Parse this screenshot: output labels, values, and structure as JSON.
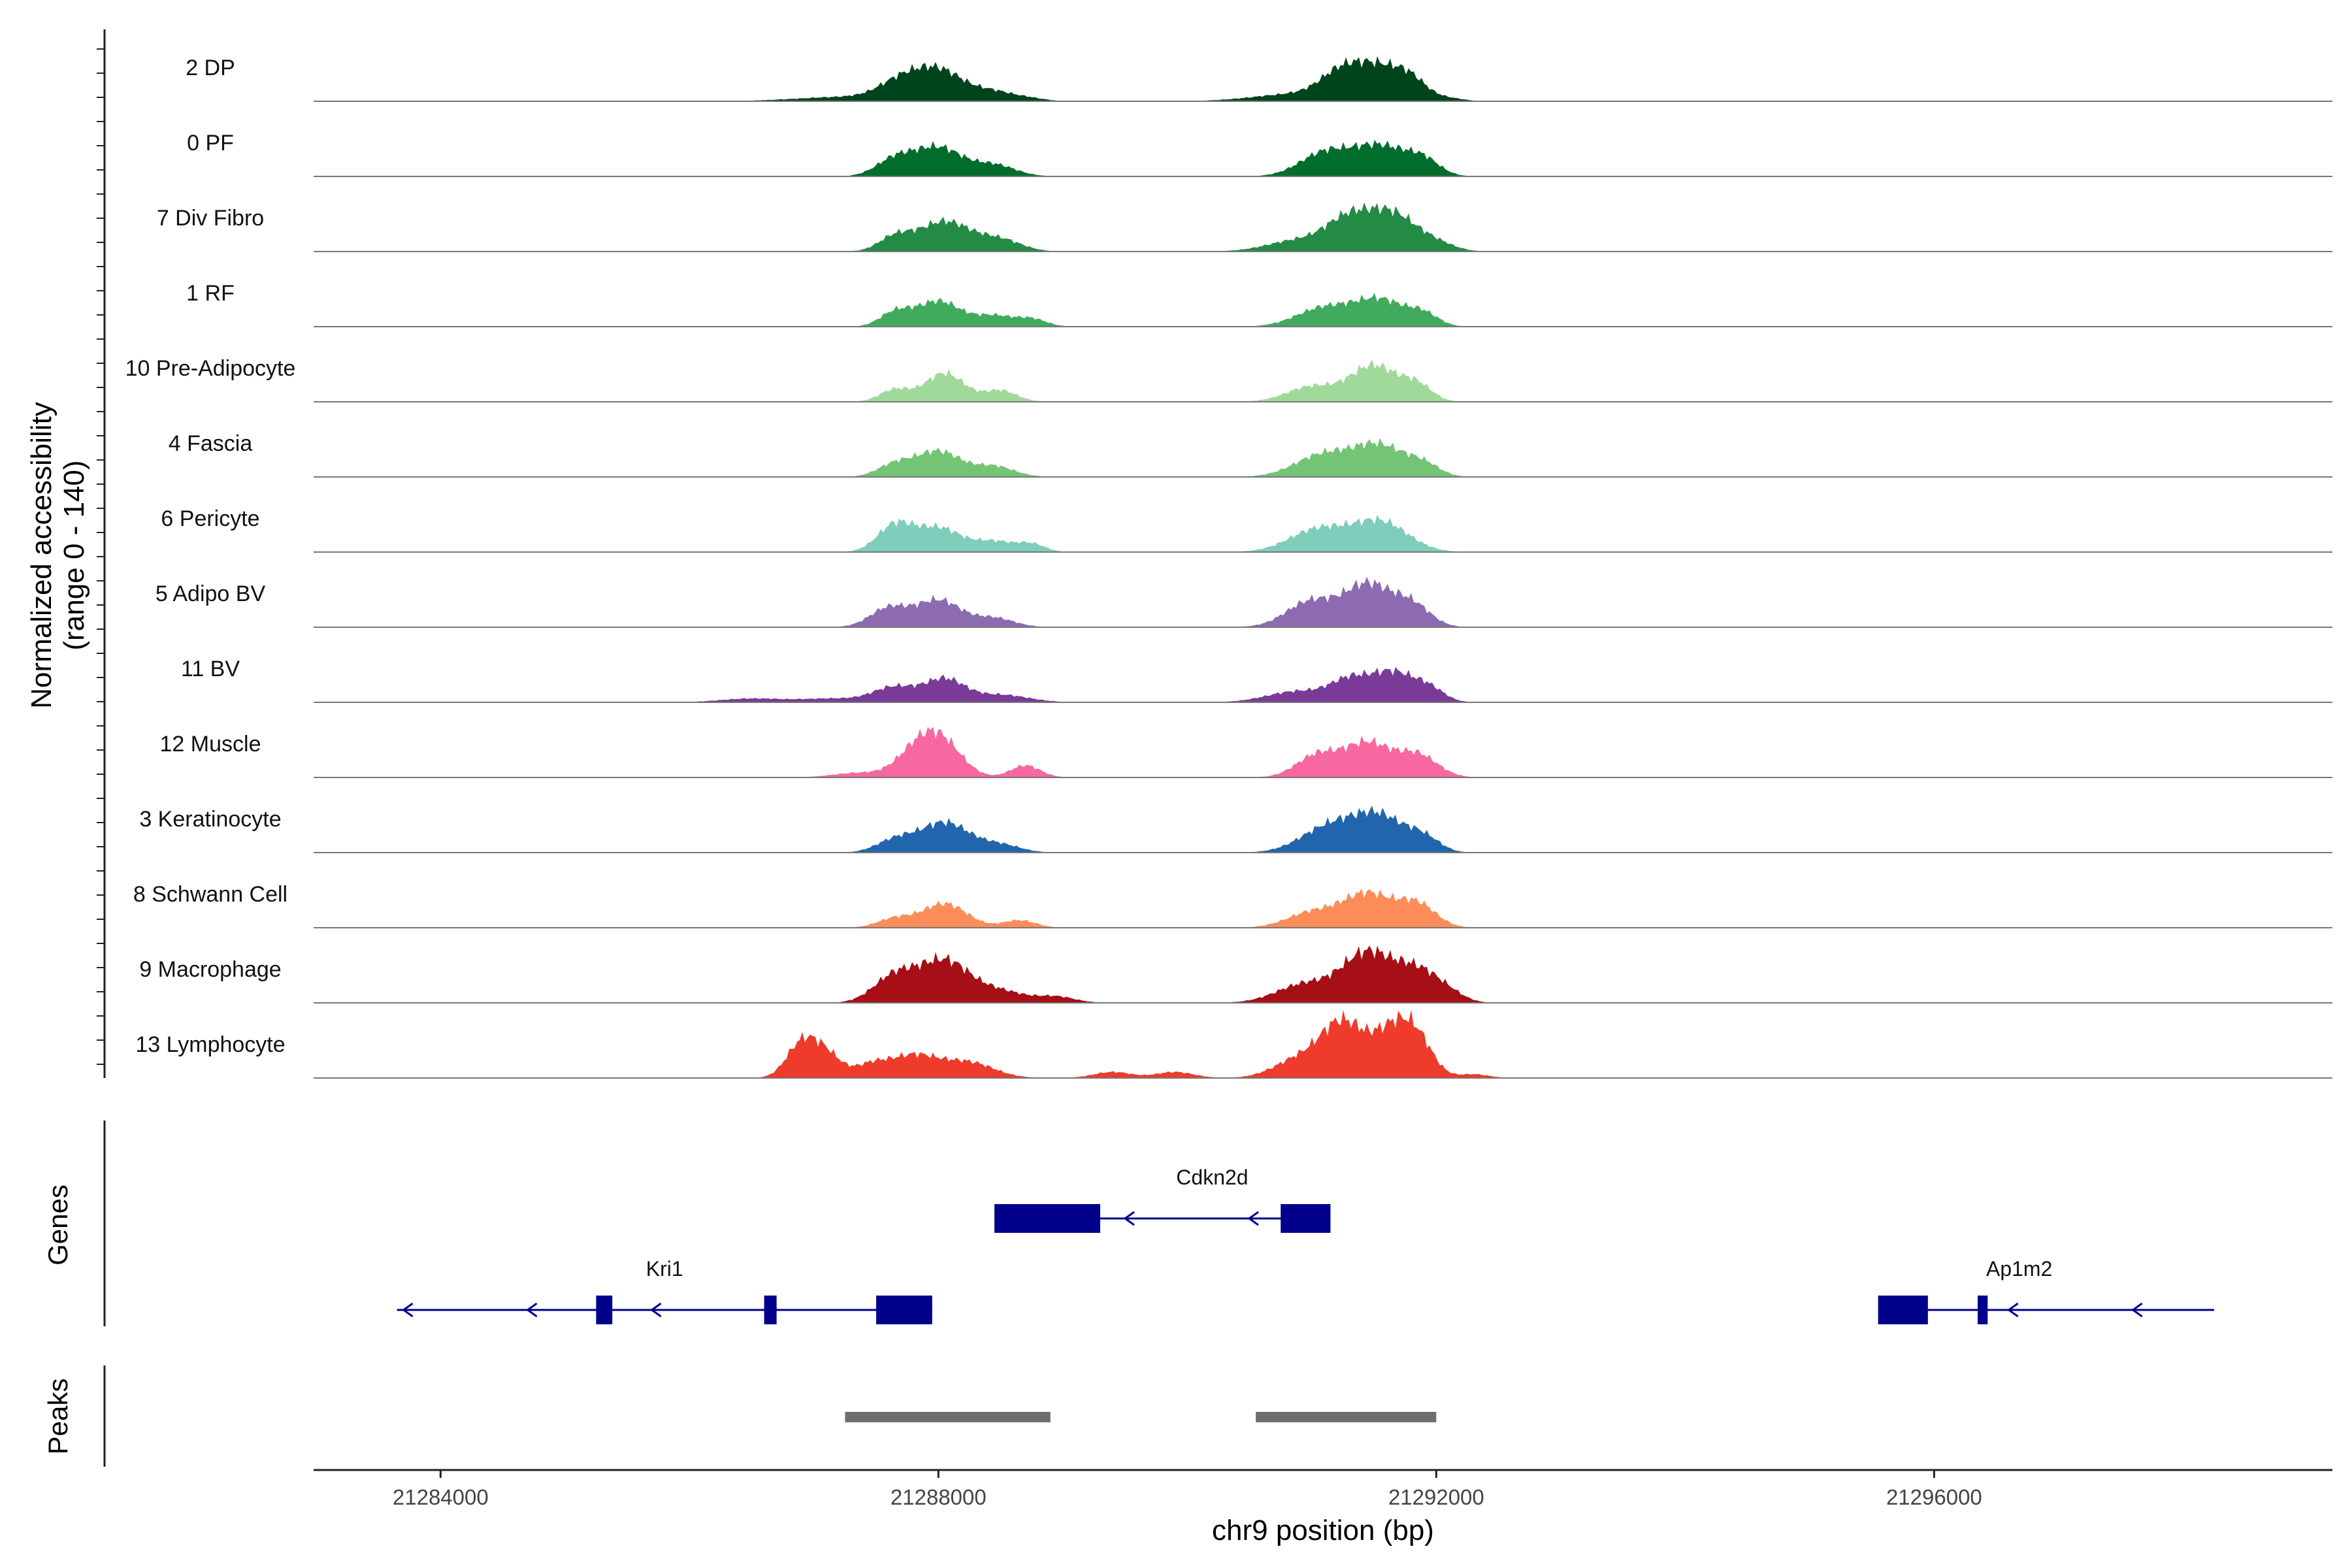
{
  "chart_data": {
    "type": "area",
    "title": "",
    "chromosome": "chr9",
    "xlabel": "chr9 position (bp)",
    "ylabel": "Normalized accessibility",
    "ylabel_range": "(range 0 - 140)",
    "yrange": [
      0,
      140
    ],
    "xlim": [
      21282980,
      21299200
    ],
    "xticks": [
      21284000,
      21288000,
      21292000,
      21296000
    ],
    "xtick_labels": [
      "21284000",
      "21288000",
      "21292000",
      "21296000"
    ],
    "tracks": [
      {
        "name": "2 DP",
        "color": "#00441b",
        "peaks": [
          [
            21287300,
            6,
            420
          ],
          [
            21287680,
            20,
            170
          ],
          [
            21288000,
            40,
            200
          ],
          [
            21288450,
            12,
            170
          ],
          [
            21288750,
            3,
            120
          ],
          [
            21290900,
            10,
            350
          ],
          [
            21291250,
            35,
            170
          ],
          [
            21291550,
            38,
            170
          ],
          [
            21291800,
            25,
            130
          ],
          [
            21292100,
            4,
            120
          ]
        ]
      },
      {
        "name": "0 PF",
        "color": "#006d2c",
        "peaks": [
          [
            21287650,
            22,
            150
          ],
          [
            21288000,
            38,
            190
          ],
          [
            21288450,
            15,
            170
          ],
          [
            21291100,
            30,
            200
          ],
          [
            21291550,
            40,
            220
          ],
          [
            21291900,
            18,
            130
          ]
        ]
      },
      {
        "name": "7 Div Fibro",
        "color": "#238b45",
        "peaks": [
          [
            21287650,
            18,
            130
          ],
          [
            21288050,
            40,
            210
          ],
          [
            21288500,
            15,
            170
          ],
          [
            21290900,
            15,
            250
          ],
          [
            21291300,
            40,
            180
          ],
          [
            21291650,
            48,
            190
          ],
          [
            21292000,
            10,
            150
          ]
        ]
      },
      {
        "name": "1 RF",
        "color": "#41ab5d",
        "peaks": [
          [
            21287650,
            18,
            120
          ],
          [
            21288000,
            34,
            180
          ],
          [
            21288450,
            14,
            150
          ],
          [
            21288750,
            10,
            120
          ],
          [
            21291100,
            25,
            220
          ],
          [
            21291550,
            35,
            200
          ],
          [
            21291900,
            15,
            120
          ]
        ]
      },
      {
        "name": "10 Pre-Adipocyte",
        "color": "#a1d99b",
        "peaks": [
          [
            21287650,
            16,
            120
          ],
          [
            21288050,
            38,
            160
          ],
          [
            21288500,
            15,
            130
          ],
          [
            21291000,
            20,
            200
          ],
          [
            21291500,
            48,
            190
          ],
          [
            21291850,
            20,
            120
          ]
        ]
      },
      {
        "name": "4 Fascia",
        "color": "#74c476",
        "peaks": [
          [
            21287650,
            16,
            140
          ],
          [
            21288000,
            34,
            180
          ],
          [
            21288450,
            14,
            160
          ],
          [
            21291100,
            30,
            230
          ],
          [
            21291550,
            40,
            200
          ],
          [
            21291900,
            15,
            130
          ]
        ]
      },
      {
        "name": "6 Pericyte",
        "color": "#7fcdbb",
        "peaks": [
          [
            21287650,
            35,
            140
          ],
          [
            21288000,
            32,
            180
          ],
          [
            21288450,
            14,
            160
          ],
          [
            21288750,
            10,
            110
          ],
          [
            21291050,
            30,
            230
          ],
          [
            21291550,
            40,
            220
          ]
        ]
      },
      {
        "name": "5 Adipo BV",
        "color": "#8c6bb1",
        "peaks": [
          [
            21287600,
            25,
            150
          ],
          [
            21288000,
            36,
            180
          ],
          [
            21288450,
            12,
            160
          ],
          [
            21291000,
            35,
            200
          ],
          [
            21291450,
            55,
            180
          ],
          [
            21291800,
            30,
            150
          ]
        ]
      },
      {
        "name": "11 BV",
        "color": "#7a3a98",
        "peaks": [
          [
            21286500,
            5,
            250
          ],
          [
            21287150,
            5,
            250
          ],
          [
            21287650,
            20,
            170
          ],
          [
            21288050,
            30,
            160
          ],
          [
            21288500,
            10,
            220
          ],
          [
            21290900,
            15,
            250
          ],
          [
            21291300,
            25,
            150
          ],
          [
            21291650,
            40,
            180
          ],
          [
            21291950,
            15,
            120
          ]
        ]
      },
      {
        "name": "12 Muscle",
        "color": "#f768a1",
        "peaks": [
          [
            21287350,
            6,
            200
          ],
          [
            21287850,
            40,
            170
          ],
          [
            21288050,
            35,
            160
          ],
          [
            21288700,
            16,
            120
          ],
          [
            21291050,
            30,
            170
          ],
          [
            21291450,
            45,
            180
          ],
          [
            21291850,
            30,
            160
          ]
        ]
      },
      {
        "name": "3 Keratinocyte",
        "color": "#2166ac",
        "peaks": [
          [
            21287650,
            16,
            150
          ],
          [
            21288050,
            40,
            200
          ],
          [
            21288500,
            10,
            160
          ],
          [
            21291150,
            35,
            230
          ],
          [
            21291550,
            45,
            200
          ],
          [
            21291900,
            18,
            130
          ]
        ]
      },
      {
        "name": "8 Schwann Cell",
        "color": "#fc8d59",
        "peaks": [
          [
            21287650,
            12,
            140
          ],
          [
            21288050,
            32,
            180
          ],
          [
            21288650,
            10,
            130
          ],
          [
            21291000,
            20,
            200
          ],
          [
            21291450,
            45,
            200
          ],
          [
            21291850,
            30,
            150
          ]
        ]
      },
      {
        "name": "9 Macrophage",
        "color": "#a50f15",
        "peaks": [
          [
            21287650,
            35,
            170
          ],
          [
            21288050,
            55,
            200
          ],
          [
            21288500,
            15,
            200
          ],
          [
            21288950,
            8,
            150
          ],
          [
            21290950,
            25,
            230
          ],
          [
            21291450,
            65,
            200
          ],
          [
            21291850,
            40,
            170
          ],
          [
            21292100,
            10,
            130
          ]
        ]
      },
      {
        "name": "13 Lymphocyte",
        "color": "#ef3b2c",
        "peaks": [
          [
            21286900,
            45,
            120
          ],
          [
            21287100,
            30,
            120
          ],
          [
            21287450,
            15,
            130
          ],
          [
            21287800,
            30,
            200
          ],
          [
            21288250,
            20,
            200
          ],
          [
            21289400,
            8,
            150
          ],
          [
            21289900,
            8,
            150
          ],
          [
            21290900,
            25,
            200
          ],
          [
            21291250,
            70,
            170
          ],
          [
            21291650,
            60,
            160
          ],
          [
            21291850,
            40,
            130
          ],
          [
            21292300,
            5,
            120
          ]
        ]
      }
    ],
    "genes": {
      "panel_label": "Genes",
      "items": [
        {
          "name": "Cdkn2d",
          "strand": "-",
          "row": 0,
          "start": 21288450,
          "end": 21291150,
          "exons": [
            [
              21288450,
              21289300
            ],
            [
              21290750,
              21291150
            ]
          ]
        },
        {
          "name": "Kri1",
          "strand": "-",
          "row": 1,
          "start": 21283650,
          "end": 21287950,
          "exons": [
            [
              21285250,
              21285380
            ],
            [
              21286600,
              21286700
            ],
            [
              21287500,
              21287950
            ]
          ]
        },
        {
          "name": "Ap1m2",
          "strand": "-",
          "row": 1,
          "start": 21295550,
          "end": 21298250,
          "exons": [
            [
              21295550,
              21295950
            ],
            [
              21296350,
              21296430
            ]
          ]
        }
      ]
    },
    "peaks": {
      "panel_label": "Peaks",
      "regions": [
        [
          21287250,
          21288900
        ],
        [
          21290550,
          21292000
        ]
      ]
    }
  }
}
